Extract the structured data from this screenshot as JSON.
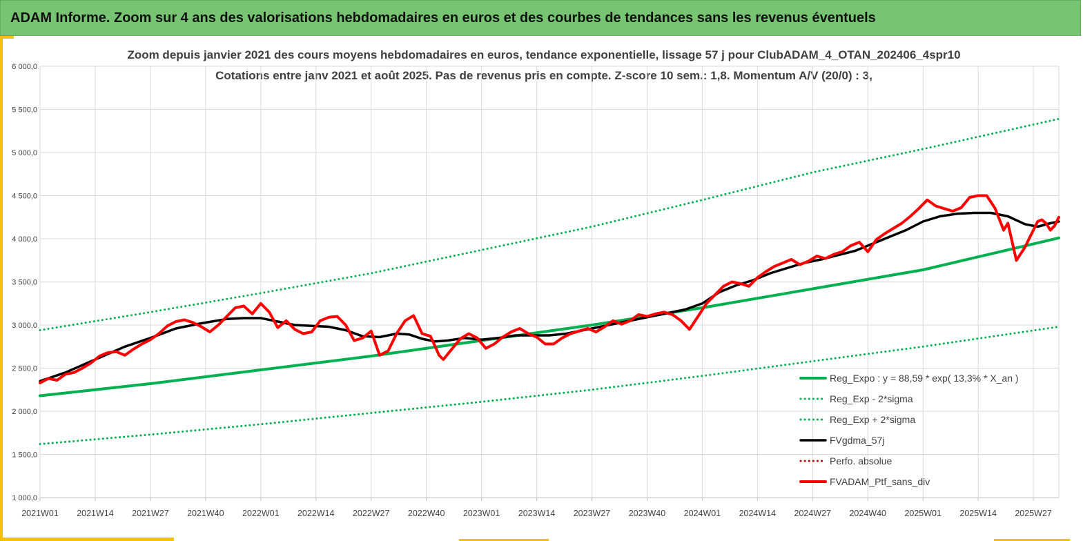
{
  "banner": {
    "title": "ADAM Informe. Zoom sur 4 ans des valorisations hebdomadaires en euros et des courbes de tendances sans les revenus éventuels"
  },
  "colors": {
    "banner_bg": "#77c472",
    "accent": "#f4c20d",
    "reg_expo": "#00b050",
    "gdma": "#000000",
    "ptf": "#ff0000",
    "perfo": "#c00000"
  },
  "chart_data": {
    "type": "line",
    "title": "Zoom depuis janvier 2021 des cours moyens hebdomadaires  en euros, tendance exponentielle, lissage 57 j pour ClubADAM_4_OTAN_202406_4spr10",
    "subtitle": "Cotations  entre janv 2021 et août 2025. Pas de revenus pris en compte. Z-score 10 sem.: 1,8. Momentum  A/V (20/0) : 3,",
    "xlabel": "",
    "ylabel": "",
    "ylim": [
      1000,
      6000
    ],
    "y_ticks": [
      "1 000,0",
      "1 500,0",
      "2 000,0",
      "2 500,0",
      "3 000,0",
      "3 500,0",
      "4 000,0",
      "4 500,0",
      "5 000,0",
      "5 500,0",
      "6 000,0"
    ],
    "x_ticks": [
      "2021W01",
      "2021W14",
      "2021W27",
      "2021W40",
      "2022W01",
      "2022W14",
      "2022W27",
      "2022W40",
      "2023W01",
      "2023W14",
      "2023W27",
      "2023W40",
      "2024W01",
      "2024W14",
      "2024W27",
      "2024W40",
      "2025W01",
      "2025W14",
      "2025W27"
    ],
    "x_range_weeks": [
      0,
      240
    ],
    "grid": true,
    "legend_position": "bottom-right",
    "series": [
      {
        "name": "Reg_Expo : y = 88,59 * exp( 13,3% *  X_an )",
        "style": "solid-thick",
        "color": "#00b050",
        "points": [
          [
            0,
            2180
          ],
          [
            26,
            2320
          ],
          [
            52,
            2480
          ],
          [
            78,
            2640
          ],
          [
            104,
            2820
          ],
          [
            130,
            3000
          ],
          [
            156,
            3200
          ],
          [
            182,
            3420
          ],
          [
            208,
            3640
          ],
          [
            240,
            4010
          ]
        ]
      },
      {
        "name": "Reg_Exp - 2*sigma",
        "style": "dotted",
        "color": "#00b050",
        "points": [
          [
            0,
            1620
          ],
          [
            26,
            1730
          ],
          [
            52,
            1850
          ],
          [
            78,
            1980
          ],
          [
            104,
            2110
          ],
          [
            130,
            2250
          ],
          [
            156,
            2410
          ],
          [
            182,
            2580
          ],
          [
            208,
            2750
          ],
          [
            240,
            2980
          ]
        ]
      },
      {
        "name": "Reg_Exp + 2*sigma",
        "style": "dotted",
        "color": "#00b050",
        "points": [
          [
            0,
            2940
          ],
          [
            26,
            3150
          ],
          [
            52,
            3370
          ],
          [
            78,
            3600
          ],
          [
            104,
            3870
          ],
          [
            130,
            4140
          ],
          [
            156,
            4450
          ],
          [
            182,
            4770
          ],
          [
            208,
            5040
          ],
          [
            240,
            5390
          ]
        ]
      },
      {
        "name": "FVgdma_57j",
        "style": "solid",
        "color": "#000000",
        "points": [
          [
            0,
            2350
          ],
          [
            6,
            2450
          ],
          [
            13,
            2600
          ],
          [
            20,
            2750
          ],
          [
            26,
            2850
          ],
          [
            32,
            2960
          ],
          [
            38,
            3020
          ],
          [
            44,
            3070
          ],
          [
            48,
            3080
          ],
          [
            52,
            3080
          ],
          [
            56,
            3040
          ],
          [
            60,
            3000
          ],
          [
            64,
            2990
          ],
          [
            68,
            2980
          ],
          [
            72,
            2940
          ],
          [
            76,
            2870
          ],
          [
            80,
            2860
          ],
          [
            84,
            2900
          ],
          [
            87,
            2890
          ],
          [
            90,
            2840
          ],
          [
            93,
            2810
          ],
          [
            96,
            2820
          ],
          [
            100,
            2850
          ],
          [
            104,
            2830
          ],
          [
            108,
            2850
          ],
          [
            112,
            2880
          ],
          [
            116,
            2880
          ],
          [
            120,
            2880
          ],
          [
            124,
            2900
          ],
          [
            128,
            2940
          ],
          [
            132,
            2980
          ],
          [
            136,
            3020
          ],
          [
            140,
            3060
          ],
          [
            144,
            3100
          ],
          [
            148,
            3140
          ],
          [
            152,
            3180
          ],
          [
            156,
            3250
          ],
          [
            160,
            3380
          ],
          [
            164,
            3460
          ],
          [
            168,
            3520
          ],
          [
            172,
            3600
          ],
          [
            176,
            3660
          ],
          [
            180,
            3720
          ],
          [
            184,
            3760
          ],
          [
            188,
            3810
          ],
          [
            192,
            3860
          ],
          [
            196,
            3940
          ],
          [
            200,
            4020
          ],
          [
            204,
            4100
          ],
          [
            208,
            4200
          ],
          [
            212,
            4260
          ],
          [
            216,
            4290
          ],
          [
            220,
            4300
          ],
          [
            224,
            4300
          ],
          [
            228,
            4260
          ],
          [
            232,
            4170
          ],
          [
            235,
            4140
          ],
          [
            238,
            4180
          ],
          [
            240,
            4200
          ]
        ]
      },
      {
        "name": "Perfo. absolue",
        "style": "dotted",
        "color": "#c00000",
        "points": []
      },
      {
        "name": "FVADAM_Ptf_sans_div",
        "style": "solid-thick",
        "color": "#ff0000",
        "points": [
          [
            0,
            2330
          ],
          [
            2,
            2380
          ],
          [
            4,
            2360
          ],
          [
            6,
            2430
          ],
          [
            8,
            2450
          ],
          [
            10,
            2500
          ],
          [
            12,
            2560
          ],
          [
            14,
            2640
          ],
          [
            16,
            2680
          ],
          [
            18,
            2690
          ],
          [
            20,
            2650
          ],
          [
            22,
            2720
          ],
          [
            24,
            2780
          ],
          [
            26,
            2830
          ],
          [
            28,
            2900
          ],
          [
            30,
            2990
          ],
          [
            32,
            3040
          ],
          [
            34,
            3060
          ],
          [
            36,
            3030
          ],
          [
            38,
            2980
          ],
          [
            40,
            2920
          ],
          [
            42,
            3000
          ],
          [
            44,
            3100
          ],
          [
            46,
            3200
          ],
          [
            48,
            3220
          ],
          [
            50,
            3130
          ],
          [
            52,
            3250
          ],
          [
            54,
            3150
          ],
          [
            56,
            2970
          ],
          [
            58,
            3050
          ],
          [
            60,
            2950
          ],
          [
            62,
            2900
          ],
          [
            64,
            2920
          ],
          [
            66,
            3050
          ],
          [
            68,
            3090
          ],
          [
            70,
            3100
          ],
          [
            72,
            3000
          ],
          [
            74,
            2820
          ],
          [
            76,
            2850
          ],
          [
            78,
            2930
          ],
          [
            80,
            2650
          ],
          [
            82,
            2700
          ],
          [
            84,
            2900
          ],
          [
            86,
            3050
          ],
          [
            88,
            3110
          ],
          [
            90,
            2900
          ],
          [
            92,
            2870
          ],
          [
            94,
            2650
          ],
          [
            95,
            2600
          ],
          [
            97,
            2720
          ],
          [
            99,
            2840
          ],
          [
            101,
            2900
          ],
          [
            103,
            2850
          ],
          [
            105,
            2730
          ],
          [
            107,
            2780
          ],
          [
            109,
            2860
          ],
          [
            111,
            2920
          ],
          [
            113,
            2960
          ],
          [
            115,
            2900
          ],
          [
            117,
            2860
          ],
          [
            119,
            2780
          ],
          [
            121,
            2780
          ],
          [
            123,
            2850
          ],
          [
            125,
            2900
          ],
          [
            127,
            2930
          ],
          [
            129,
            2960
          ],
          [
            131,
            2920
          ],
          [
            133,
            2980
          ],
          [
            135,
            3050
          ],
          [
            137,
            3010
          ],
          [
            139,
            3050
          ],
          [
            141,
            3120
          ],
          [
            143,
            3100
          ],
          [
            145,
            3130
          ],
          [
            147,
            3150
          ],
          [
            149,
            3120
          ],
          [
            151,
            3050
          ],
          [
            153,
            2950
          ],
          [
            155,
            3100
          ],
          [
            157,
            3250
          ],
          [
            159,
            3350
          ],
          [
            161,
            3450
          ],
          [
            163,
            3500
          ],
          [
            165,
            3480
          ],
          [
            167,
            3450
          ],
          [
            169,
            3550
          ],
          [
            171,
            3620
          ],
          [
            173,
            3680
          ],
          [
            175,
            3720
          ],
          [
            177,
            3760
          ],
          [
            179,
            3700
          ],
          [
            181,
            3740
          ],
          [
            183,
            3800
          ],
          [
            185,
            3770
          ],
          [
            187,
            3820
          ],
          [
            189,
            3850
          ],
          [
            191,
            3920
          ],
          [
            193,
            3960
          ],
          [
            195,
            3850
          ],
          [
            197,
            3990
          ],
          [
            199,
            4060
          ],
          [
            201,
            4120
          ],
          [
            203,
            4180
          ],
          [
            205,
            4260
          ],
          [
            207,
            4350
          ],
          [
            209,
            4450
          ],
          [
            211,
            4380
          ],
          [
            213,
            4350
          ],
          [
            215,
            4320
          ],
          [
            217,
            4360
          ],
          [
            219,
            4480
          ],
          [
            221,
            4500
          ],
          [
            223,
            4500
          ],
          [
            225,
            4350
          ],
          [
            227,
            4100
          ],
          [
            228,
            4180
          ],
          [
            230,
            3750
          ],
          [
            232,
            3900
          ],
          [
            234,
            4100
          ],
          [
            235,
            4200
          ],
          [
            236,
            4220
          ],
          [
            237,
            4180
          ],
          [
            238,
            4100
          ],
          [
            239,
            4150
          ],
          [
            240,
            4250
          ]
        ]
      }
    ]
  }
}
